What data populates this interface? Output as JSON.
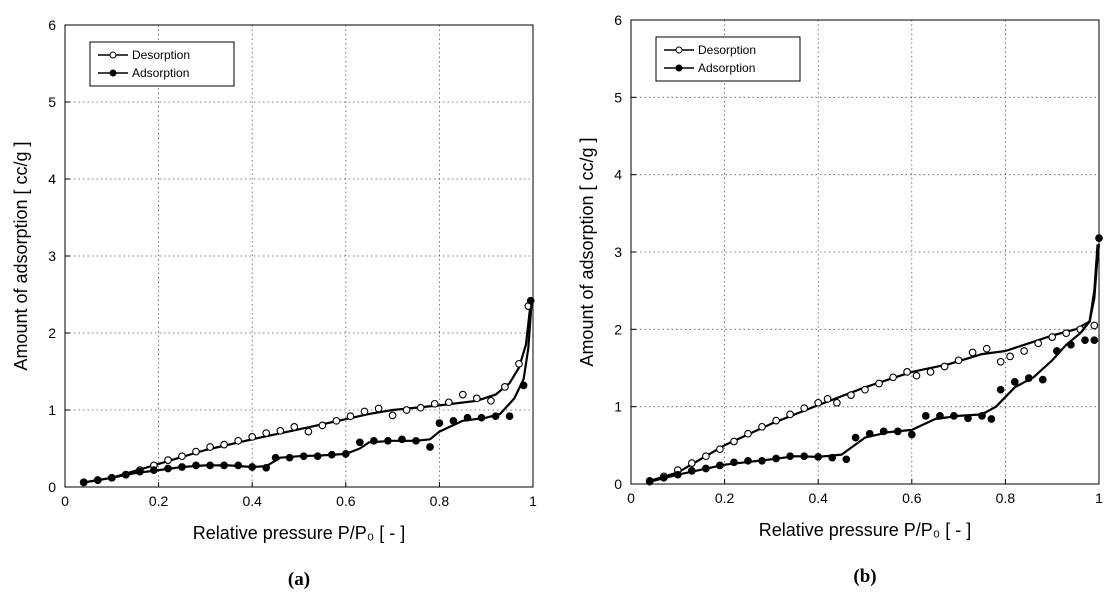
{
  "chart_data": [
    {
      "type": "scatter",
      "panel": "a",
      "caption": "(a)",
      "xlabel": "Relative pressure P/P₀ [ - ]",
      "ylabel": "Amount of adsorption [ cc/g ]",
      "xlim": [
        0,
        1
      ],
      "ylim": [
        0,
        6
      ],
      "xticks": [
        0,
        0.2,
        0.4,
        0.6,
        0.8,
        1
      ],
      "xtick_labels": [
        "0",
        "0.2",
        "0.4",
        "0.6",
        "0.8",
        "1"
      ],
      "yticks": [
        0,
        1,
        2,
        3,
        4,
        5,
        6
      ],
      "ytick_labels": [
        "0",
        "1",
        "2",
        "3",
        "4",
        "5",
        "6"
      ],
      "grid": true,
      "legend_position": "top-left",
      "series": [
        {
          "name": "Desorption",
          "marker": "open-circle",
          "points": {
            "x": [
              0.04,
              0.07,
              0.1,
              0.13,
              0.16,
              0.19,
              0.22,
              0.25,
              0.28,
              0.31,
              0.34,
              0.37,
              0.4,
              0.43,
              0.46,
              0.49,
              0.52,
              0.55,
              0.58,
              0.61,
              0.64,
              0.67,
              0.7,
              0.73,
              0.76,
              0.79,
              0.82,
              0.85,
              0.88,
              0.91,
              0.94,
              0.97,
              0.99
            ],
            "y": [
              0.06,
              0.09,
              0.12,
              0.16,
              0.22,
              0.28,
              0.35,
              0.4,
              0.46,
              0.52,
              0.55,
              0.6,
              0.65,
              0.7,
              0.73,
              0.78,
              0.72,
              0.8,
              0.86,
              0.92,
              0.98,
              1.02,
              0.93,
              1.0,
              1.03,
              1.08,
              1.1,
              1.2,
              1.15,
              1.12,
              1.3,
              1.6,
              2.35
            ]
          },
          "curve": {
            "x": [
              0.04,
              0.1,
              0.2,
              0.3,
              0.4,
              0.5,
              0.6,
              0.65,
              0.7,
              0.8,
              0.88,
              0.92,
              0.95,
              0.97,
              0.985,
              0.995
            ],
            "y": [
              0.06,
              0.12,
              0.3,
              0.48,
              0.62,
              0.75,
              0.88,
              0.95,
              1.0,
              1.06,
              1.12,
              1.2,
              1.35,
              1.55,
              1.85,
              2.4
            ]
          }
        },
        {
          "name": "Adsorption",
          "marker": "filled-circle",
          "points": {
            "x": [
              0.04,
              0.07,
              0.1,
              0.13,
              0.16,
              0.19,
              0.22,
              0.25,
              0.28,
              0.31,
              0.34,
              0.37,
              0.4,
              0.43,
              0.45,
              0.48,
              0.51,
              0.54,
              0.57,
              0.6,
              0.63,
              0.66,
              0.69,
              0.72,
              0.75,
              0.78,
              0.8,
              0.83,
              0.86,
              0.89,
              0.92,
              0.95,
              0.98,
              0.995
            ],
            "y": [
              0.06,
              0.09,
              0.12,
              0.16,
              0.2,
              0.22,
              0.24,
              0.26,
              0.28,
              0.28,
              0.28,
              0.28,
              0.26,
              0.25,
              0.38,
              0.38,
              0.4,
              0.4,
              0.42,
              0.43,
              0.58,
              0.6,
              0.6,
              0.62,
              0.6,
              0.52,
              0.83,
              0.86,
              0.9,
              0.9,
              0.92,
              0.92,
              1.32,
              2.42
            ]
          },
          "curve": {
            "x": [
              0.04,
              0.1,
              0.15,
              0.2,
              0.25,
              0.3,
              0.35,
              0.4,
              0.43,
              0.46,
              0.5,
              0.55,
              0.6,
              0.63,
              0.65,
              0.7,
              0.75,
              0.78,
              0.8,
              0.85,
              0.9,
              0.93,
              0.96,
              0.98,
              0.99,
              0.997
            ],
            "y": [
              0.06,
              0.12,
              0.18,
              0.22,
              0.26,
              0.28,
              0.28,
              0.26,
              0.27,
              0.38,
              0.4,
              0.41,
              0.43,
              0.5,
              0.58,
              0.6,
              0.6,
              0.62,
              0.72,
              0.86,
              0.9,
              0.95,
              1.15,
              1.4,
              1.8,
              2.4
            ]
          }
        }
      ]
    },
    {
      "type": "scatter",
      "panel": "b",
      "caption": "(b)",
      "xlabel": "Relative pressure P/P₀ [ - ]",
      "ylabel": "Amount of adsorption [ cc/g ]",
      "xlim": [
        0,
        1
      ],
      "ylim": [
        0,
        6
      ],
      "xticks": [
        0,
        0.2,
        0.4,
        0.6,
        0.8,
        1
      ],
      "xtick_labels": [
        "0",
        "0.2",
        "0.4",
        "0.6",
        "0.8",
        "1"
      ],
      "yticks": [
        0,
        1,
        2,
        3,
        4,
        5,
        6
      ],
      "ytick_labels": [
        "0",
        "1",
        "2",
        "3",
        "4",
        "5",
        "6"
      ],
      "grid": true,
      "legend_position": "top-left",
      "series": [
        {
          "name": "Desorption",
          "marker": "open-circle",
          "points": {
            "x": [
              0.04,
              0.07,
              0.1,
              0.13,
              0.16,
              0.19,
              0.22,
              0.25,
              0.28,
              0.31,
              0.34,
              0.37,
              0.4,
              0.42,
              0.44,
              0.47,
              0.5,
              0.53,
              0.56,
              0.59,
              0.61,
              0.64,
              0.67,
              0.7,
              0.73,
              0.76,
              0.79,
              0.81,
              0.84,
              0.87,
              0.9,
              0.93,
              0.96,
              0.99
            ],
            "y": [
              0.04,
              0.1,
              0.18,
              0.27,
              0.36,
              0.45,
              0.55,
              0.65,
              0.74,
              0.82,
              0.9,
              0.98,
              1.05,
              1.1,
              1.05,
              1.15,
              1.22,
              1.3,
              1.38,
              1.45,
              1.4,
              1.45,
              1.52,
              1.6,
              1.7,
              1.75,
              1.58,
              1.65,
              1.72,
              1.82,
              1.9,
              1.95,
              2.0,
              2.05
            ]
          },
          "curve": {
            "x": [
              0.04,
              0.1,
              0.2,
              0.3,
              0.4,
              0.5,
              0.6,
              0.68,
              0.75,
              0.8,
              0.85,
              0.9,
              0.95,
              0.98,
              0.99,
              0.995,
              1.0
            ],
            "y": [
              0.04,
              0.15,
              0.5,
              0.78,
              1.02,
              1.25,
              1.45,
              1.55,
              1.68,
              1.72,
              1.82,
              1.92,
              2.0,
              2.1,
              2.4,
              2.8,
              3.1
            ]
          }
        },
        {
          "name": "Adsorption",
          "marker": "filled-circle",
          "points": {
            "x": [
              0.04,
              0.07,
              0.1,
              0.13,
              0.16,
              0.19,
              0.22,
              0.25,
              0.28,
              0.31,
              0.34,
              0.37,
              0.4,
              0.43,
              0.46,
              0.48,
              0.51,
              0.54,
              0.57,
              0.6,
              0.63,
              0.66,
              0.69,
              0.72,
              0.75,
              0.77,
              0.79,
              0.82,
              0.85,
              0.88,
              0.91,
              0.94,
              0.97,
              0.99,
              1.0
            ],
            "y": [
              0.03,
              0.08,
              0.12,
              0.17,
              0.2,
              0.24,
              0.28,
              0.3,
              0.3,
              0.33,
              0.36,
              0.36,
              0.35,
              0.34,
              0.32,
              0.6,
              0.65,
              0.68,
              0.68,
              0.64,
              0.88,
              0.88,
              0.88,
              0.85,
              0.88,
              0.84,
              1.22,
              1.32,
              1.37,
              1.35,
              1.72,
              1.8,
              1.86,
              1.86,
              3.18
            ]
          },
          "curve": {
            "x": [
              0.04,
              0.1,
              0.2,
              0.3,
              0.35,
              0.4,
              0.45,
              0.5,
              0.55,
              0.6,
              0.65,
              0.7,
              0.75,
              0.78,
              0.82,
              0.86,
              0.9,
              0.93,
              0.96,
              0.98,
              0.99,
              0.997
            ],
            "y": [
              0.03,
              0.12,
              0.25,
              0.32,
              0.36,
              0.35,
              0.38,
              0.6,
              0.67,
              0.7,
              0.84,
              0.88,
              0.9,
              1.0,
              1.25,
              1.38,
              1.6,
              1.8,
              1.95,
              2.1,
              2.5,
              3.1
            ]
          }
        }
      ]
    }
  ]
}
